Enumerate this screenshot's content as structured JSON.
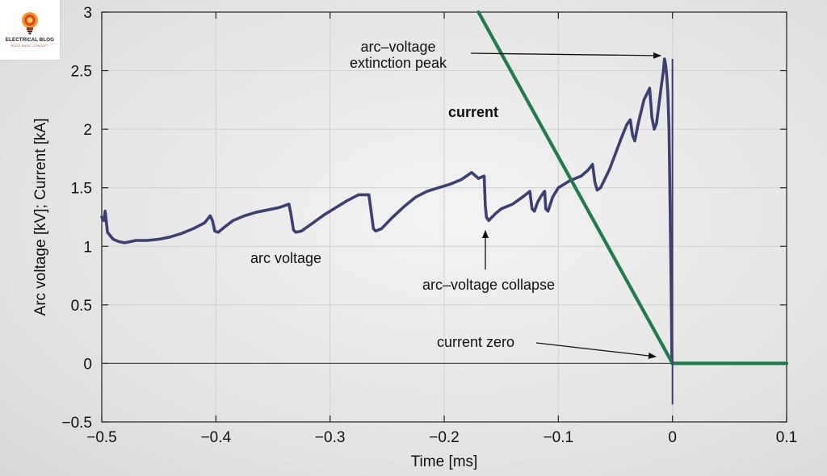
{
  "brand": {
    "name": "ELECTRICAL BLOG",
    "tagline": "BUILD BASIC CONCEPT"
  },
  "chart_data": {
    "type": "line",
    "title": "",
    "xlabel": "Time [ms]",
    "ylabel": "Arc voltage [kV]; Current [kA]",
    "xlim": [
      -0.5,
      0.1
    ],
    "ylim": [
      -0.5,
      3
    ],
    "xticks": [
      -0.5,
      -0.4,
      -0.3,
      -0.2,
      -0.1,
      0,
      0.1
    ],
    "xtick_labels": [
      "−0.5",
      "−0.4",
      "−0.3",
      "−0.2",
      "−0.1",
      "0",
      "0.1"
    ],
    "yticks": [
      -0.5,
      0,
      0.5,
      1,
      1.5,
      2,
      2.5,
      3
    ],
    "ytick_labels": [
      "−0.5",
      "0",
      "0.5",
      "1",
      "1.5",
      "2",
      "2.5",
      "3"
    ],
    "grid": true,
    "legend": "none",
    "series": [
      {
        "name": "arc voltage",
        "color": "#3d3f72",
        "x": [
          -0.5,
          -0.498,
          -0.497,
          -0.495,
          -0.49,
          -0.485,
          -0.48,
          -0.475,
          -0.47,
          -0.46,
          -0.45,
          -0.44,
          -0.43,
          -0.42,
          -0.41,
          -0.405,
          -0.403,
          -0.401,
          -0.398,
          -0.393,
          -0.385,
          -0.375,
          -0.365,
          -0.355,
          -0.345,
          -0.336,
          -0.334,
          -0.332,
          -0.33,
          -0.325,
          -0.315,
          -0.305,
          -0.295,
          -0.285,
          -0.275,
          -0.266,
          -0.264,
          -0.262,
          -0.26,
          -0.255,
          -0.245,
          -0.235,
          -0.225,
          -0.215,
          -0.205,
          -0.195,
          -0.185,
          -0.176,
          -0.17,
          -0.165,
          -0.164,
          -0.163,
          -0.161,
          -0.158,
          -0.155,
          -0.15,
          -0.14,
          -0.13,
          -0.125,
          -0.123,
          -0.121,
          -0.118,
          -0.115,
          -0.112,
          -0.111,
          -0.109,
          -0.105,
          -0.1,
          -0.095,
          -0.09,
          -0.08,
          -0.074,
          -0.07,
          -0.068,
          -0.066,
          -0.063,
          -0.06,
          -0.055,
          -0.05,
          -0.045,
          -0.04,
          -0.037,
          -0.035,
          -0.033,
          -0.03,
          -0.025,
          -0.02,
          -0.018,
          -0.016,
          -0.014,
          -0.012,
          -0.01,
          -0.008,
          -0.007,
          -0.006,
          -0.005,
          -0.004,
          -0.003,
          -0.002,
          -0.001,
          -0.0005
        ],
        "y": [
          1.25,
          1.22,
          1.3,
          1.12,
          1.06,
          1.04,
          1.03,
          1.04,
          1.05,
          1.05,
          1.06,
          1.08,
          1.11,
          1.15,
          1.2,
          1.26,
          1.22,
          1.13,
          1.12,
          1.16,
          1.22,
          1.26,
          1.29,
          1.31,
          1.33,
          1.36,
          1.26,
          1.14,
          1.12,
          1.13,
          1.2,
          1.27,
          1.33,
          1.39,
          1.44,
          1.44,
          1.3,
          1.15,
          1.13,
          1.15,
          1.25,
          1.34,
          1.42,
          1.47,
          1.5,
          1.53,
          1.57,
          1.63,
          1.58,
          1.6,
          1.35,
          1.25,
          1.22,
          1.25,
          1.28,
          1.32,
          1.36,
          1.43,
          1.47,
          1.32,
          1.3,
          1.38,
          1.43,
          1.47,
          1.32,
          1.3,
          1.42,
          1.5,
          1.53,
          1.56,
          1.6,
          1.65,
          1.7,
          1.55,
          1.48,
          1.5,
          1.56,
          1.66,
          1.79,
          1.92,
          2.04,
          2.08,
          1.95,
          1.9,
          2.05,
          2.25,
          2.35,
          2.1,
          2.0,
          2.05,
          2.2,
          2.35,
          2.5,
          2.6,
          2.55,
          2.45,
          2.3,
          2.0,
          1.3,
          0.5,
          0.0
        ]
      },
      {
        "name": "current",
        "color": "#1f7a4c",
        "x": [
          -0.17,
          0,
          0.1
        ],
        "y": [
          3.0,
          0,
          0
        ]
      }
    ],
    "annotations": [
      {
        "lines": [
          "arc–voltage",
          "extinction peak"
        ]
      },
      {
        "lines": [
          "current"
        ]
      },
      {
        "lines": [
          "arc voltage"
        ]
      },
      {
        "lines": [
          "arc–voltage collapse"
        ]
      },
      {
        "lines": [
          "current zero"
        ]
      }
    ]
  }
}
